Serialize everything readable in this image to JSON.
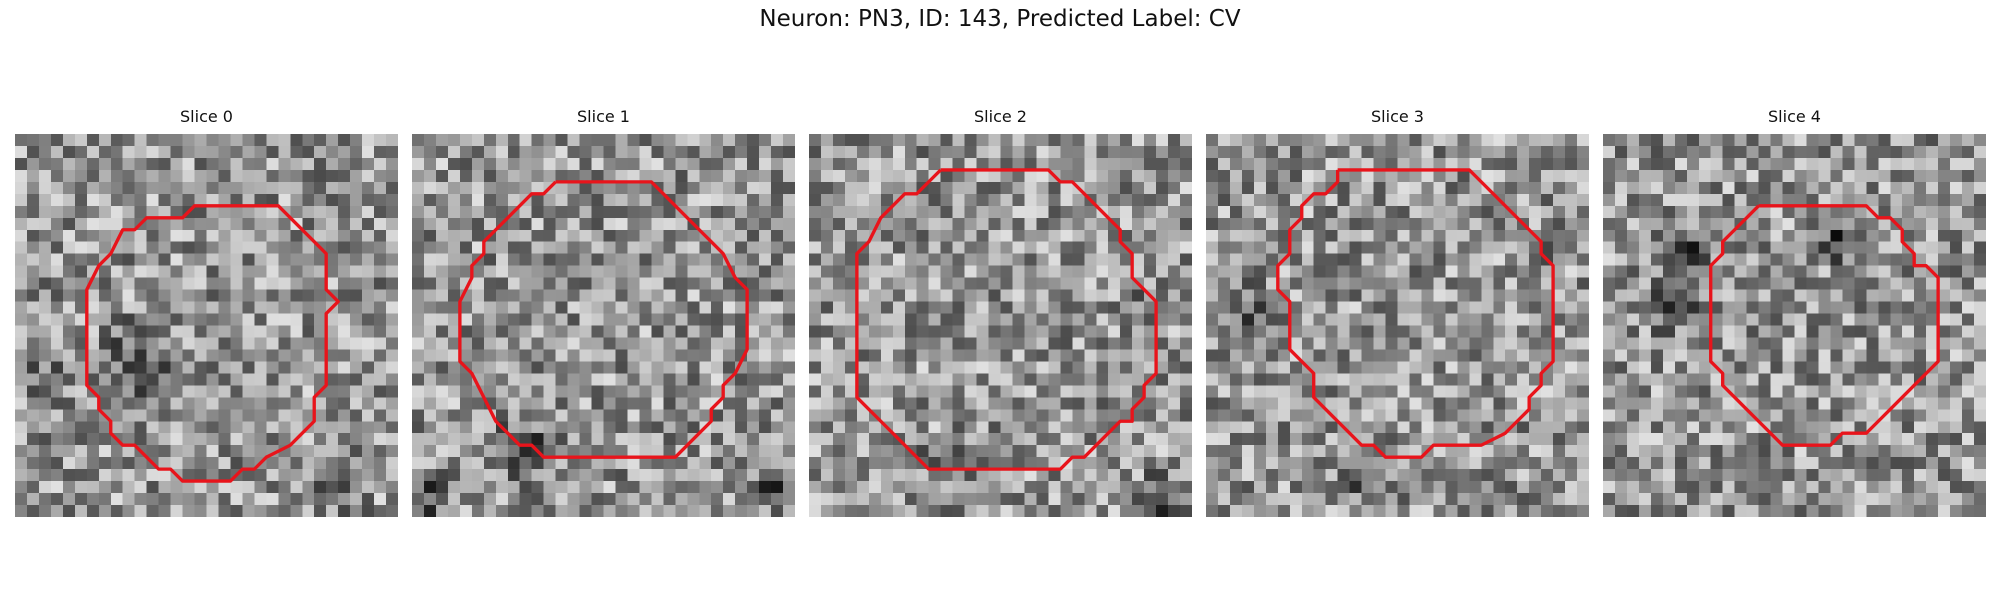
{
  "figure": {
    "title": "Neuron: PN3, ID: 143, Predicted Label: CV"
  },
  "panels": [
    {
      "title": "Slice 0"
    },
    {
      "title": "Slice 1"
    },
    {
      "title": "Slice 2"
    },
    {
      "title": "Slice 3"
    },
    {
      "title": "Slice 4"
    }
  ],
  "colors": {
    "contour": "#e8141b",
    "background": "#ffffff"
  }
}
